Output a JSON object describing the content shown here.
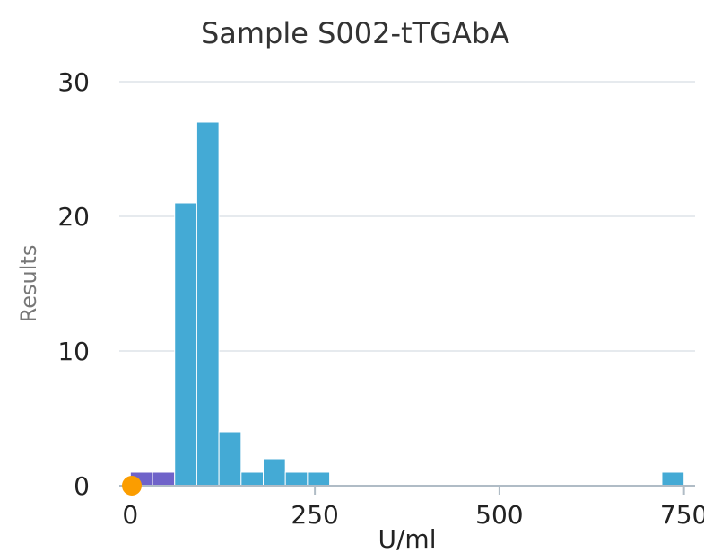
{
  "chart_data": {
    "type": "bar",
    "title": "Sample S002-tTGAbA",
    "xlabel": "U/ml",
    "ylabel": "Results",
    "xlim": [
      -15,
      765
    ],
    "ylim": [
      0,
      30
    ],
    "yticks": [
      "0",
      "10",
      "20",
      "30"
    ],
    "xticks": [
      "0",
      "250",
      "500",
      "750"
    ],
    "grid": true,
    "bin_width": 30,
    "colors": {
      "bars": "#44aad5",
      "highlight": "#6f63c9",
      "marker": "#fb9d00"
    },
    "bins": [
      {
        "start": 0,
        "end": 30,
        "count": 1,
        "highlight": true
      },
      {
        "start": 30,
        "end": 60,
        "count": 1,
        "highlight": true
      },
      {
        "start": 60,
        "end": 90,
        "count": 21
      },
      {
        "start": 90,
        "end": 120,
        "count": 27
      },
      {
        "start": 120,
        "end": 150,
        "count": 4
      },
      {
        "start": 150,
        "end": 180,
        "count": 1
      },
      {
        "start": 180,
        "end": 210,
        "count": 2
      },
      {
        "start": 210,
        "end": 240,
        "count": 1
      },
      {
        "start": 240,
        "end": 270,
        "count": 1
      },
      {
        "start": 720,
        "end": 750,
        "count": 1
      }
    ],
    "marker": {
      "x": 2,
      "y": 0
    }
  }
}
